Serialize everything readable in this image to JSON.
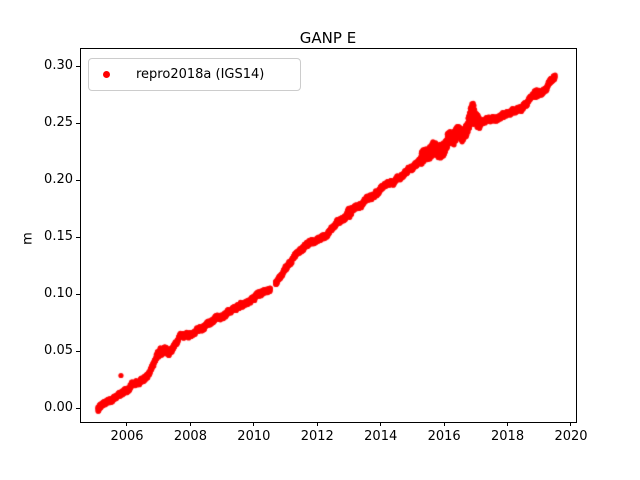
{
  "chart_data": {
    "type": "scatter",
    "title": "GANP E",
    "xlabel": "",
    "ylabel": "m",
    "legend_position": "upper left",
    "grid": false,
    "xlim": [
      2004.518,
      2020.158
    ],
    "ylim": [
      -0.01228,
      0.31579
    ],
    "xtick_values": [
      2006,
      2008,
      2010,
      2012,
      2014,
      2016,
      2018,
      2020
    ],
    "xtick_labels": [
      "2006",
      "2008",
      "2010",
      "2012",
      "2014",
      "2016",
      "2018",
      "2020"
    ],
    "ytick_values": [
      0.0,
      0.05,
      0.1,
      0.15,
      0.2,
      0.25,
      0.3
    ],
    "ytick_labels": [
      "0.00",
      "0.05",
      "0.10",
      "0.15",
      "0.20",
      "0.25",
      "0.30"
    ],
    "series": [
      {
        "name": "repro2018a (IGS14)",
        "color": "#ff0000",
        "marker": "dot",
        "marker_radius_px": 2.6,
        "x_range": [
          2005.08,
          2019.5
        ],
        "sampling_step_years": 0.004,
        "trend_anchors": [
          [
            2005.08,
            -0.001
          ],
          [
            2005.3,
            0.004
          ],
          [
            2005.6,
            0.009
          ],
          [
            2005.9,
            0.0135
          ],
          [
            2006.1,
            0.018
          ],
          [
            2006.4,
            0.0255
          ],
          [
            2006.7,
            0.033
          ],
          [
            2006.95,
            0.045
          ],
          [
            2007.15,
            0.05
          ],
          [
            2007.35,
            0.051
          ],
          [
            2007.67,
            0.0596
          ],
          [
            2008.0,
            0.065
          ],
          [
            2008.4,
            0.0705
          ],
          [
            2008.8,
            0.0775
          ],
          [
            2009.2,
            0.0838
          ],
          [
            2009.6,
            0.089
          ],
          [
            2010.0,
            0.0953
          ],
          [
            2010.29,
            0.1009
          ],
          [
            2010.5,
            0.1042
          ],
          [
            2010.7,
            0.11
          ],
          [
            2011.0,
            0.121
          ],
          [
            2011.46,
            0.1386
          ],
          [
            2011.8,
            0.146
          ],
          [
            2012.2,
            0.152
          ],
          [
            2012.6,
            0.161
          ],
          [
            2012.97,
            0.172
          ],
          [
            2013.1,
            0.1735
          ],
          [
            2013.4,
            0.179
          ],
          [
            2013.7,
            0.185
          ],
          [
            2014.0,
            0.1914
          ],
          [
            2014.29,
            0.1956
          ],
          [
            2014.6,
            0.2
          ],
          [
            2014.9,
            0.2055
          ],
          [
            2015.1,
            0.211
          ],
          [
            2015.3,
            0.2185
          ],
          [
            2015.5,
            0.2235
          ],
          [
            2015.65,
            0.2295
          ],
          [
            2015.8,
            0.2245
          ],
          [
            2016.0,
            0.2275
          ],
          [
            2016.15,
            0.2395
          ],
          [
            2016.3,
            0.234
          ],
          [
            2016.45,
            0.2425
          ],
          [
            2016.6,
            0.2385
          ],
          [
            2016.75,
            0.2465
          ],
          [
            2016.88,
            0.26
          ],
          [
            2017.0,
            0.253
          ],
          [
            2017.15,
            0.2455
          ],
          [
            2017.3,
            0.25
          ],
          [
            2017.5,
            0.253
          ],
          [
            2017.75,
            0.2565
          ],
          [
            2018.0,
            0.2605
          ],
          [
            2018.3,
            0.264
          ],
          [
            2018.6,
            0.268
          ],
          [
            2018.9,
            0.276
          ],
          [
            2019.05,
            0.2755
          ],
          [
            2019.2,
            0.28
          ],
          [
            2019.35,
            0.2855
          ],
          [
            2019.5,
            0.2905
          ]
        ],
        "outliers": [
          [
            2005.81,
            0.0285
          ]
        ],
        "gaps": [
          [
            2010.52,
            2010.68
          ]
        ],
        "noise": {
          "base_amp": 0.0018,
          "windows": [
            {
              "from": 2006.9,
              "to": 2007.25,
              "amp": 0.0028
            },
            {
              "from": 2012.95,
              "to": 2013.08,
              "amp": 0.004
            },
            {
              "from": 2015.25,
              "to": 2017.12,
              "amp": 0.006
            },
            {
              "from": 2016.79,
              "to": 2016.97,
              "amp": 0.0095
            },
            {
              "from": 2018.85,
              "to": 2019.0,
              "amp": 0.003
            }
          ]
        }
      }
    ]
  }
}
